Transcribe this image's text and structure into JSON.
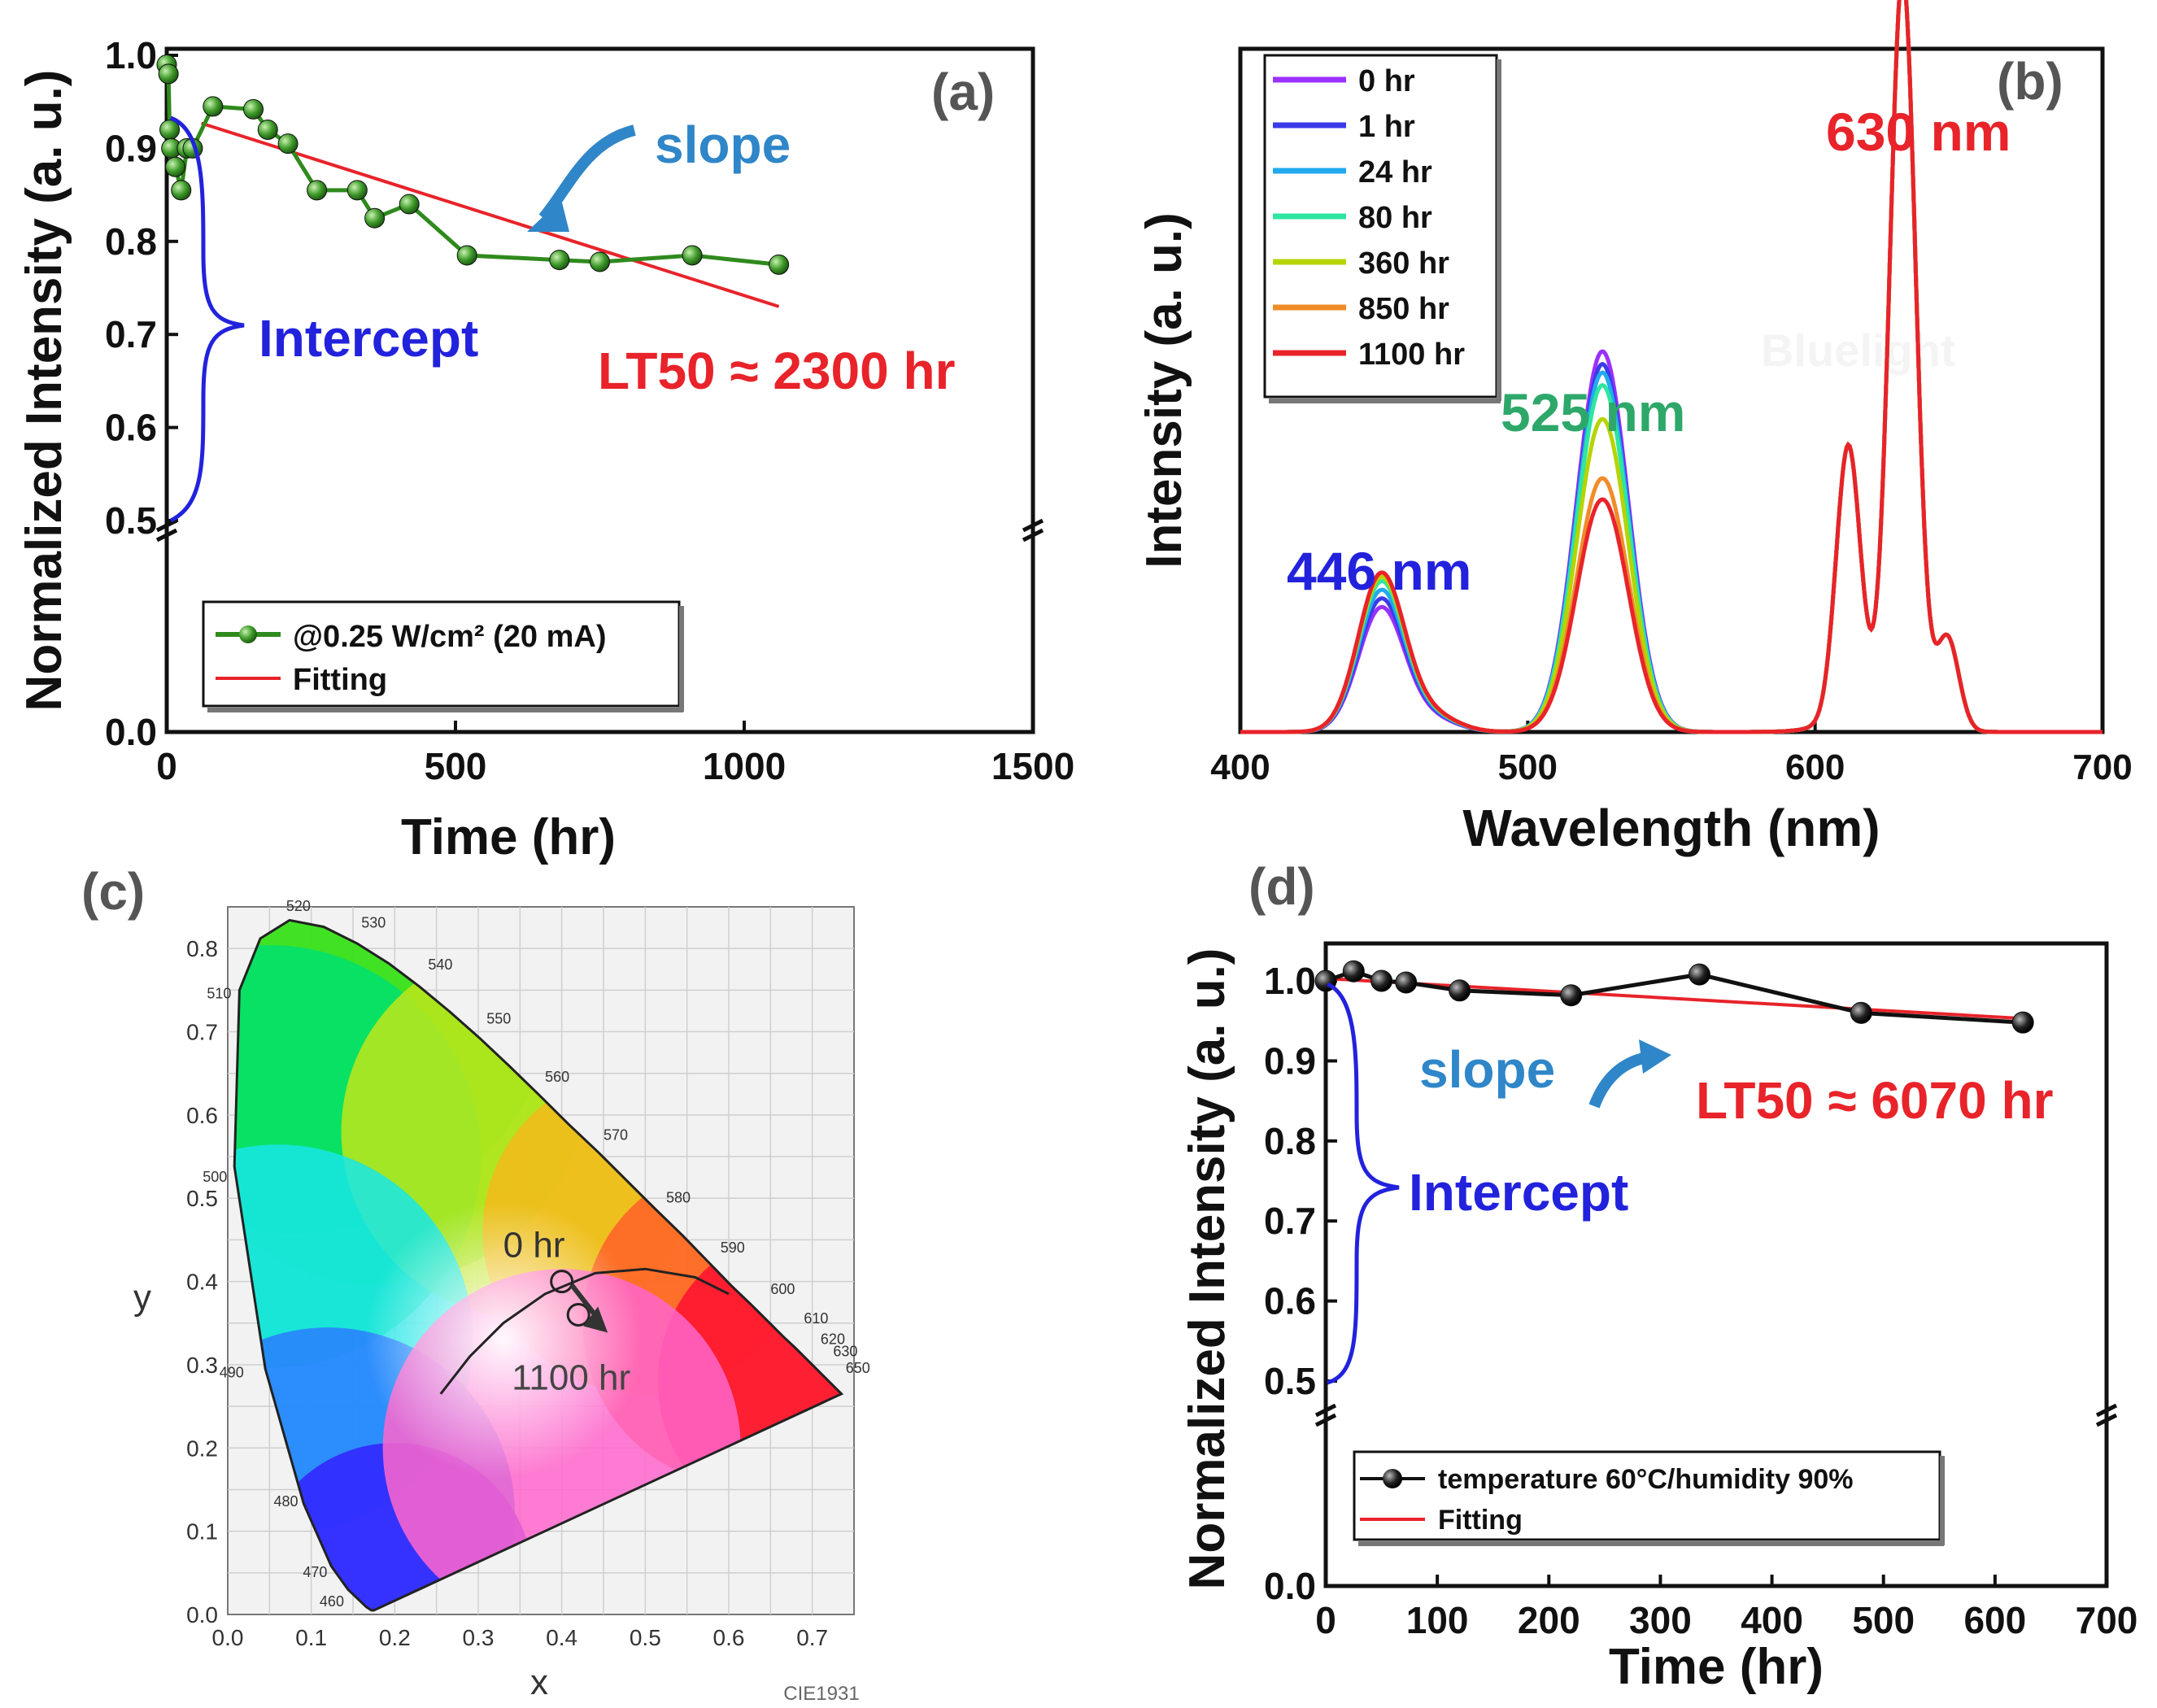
{
  "colors": {
    "green_series": "#2f8a1d",
    "black_series": "#111111",
    "fit_red": "#e8232a",
    "blue_text": "#2222dd",
    "slope_blue": "#2f86c8",
    "peak_green": "#2ea86a",
    "axis": "#111111",
    "cie_bg": "#f2f2f2"
  },
  "chart_data": [
    {
      "panel": "(a)",
      "type": "line",
      "xlabel": "Time (hr)",
      "ylabel": "Normalized Intensity (a. u.)",
      "xlim": [
        0,
        1500
      ],
      "ylim": [
        0,
        1.0
      ],
      "axis_break": [
        0.1,
        0.5
      ],
      "xticks": [
        "0",
        "500",
        "1000",
        "1500"
      ],
      "yticks": [
        "0.0",
        "0.5",
        "0.6",
        "0.7",
        "0.8",
        "0.9",
        "1.0"
      ],
      "series": [
        {
          "name": "@0.25 W/cm² (20 mA)",
          "x": [
            0,
            3,
            5,
            8,
            15,
            25,
            35,
            45,
            80,
            150,
            175,
            210,
            260,
            330,
            360,
            420,
            520,
            680,
            750,
            910,
            1060
          ],
          "y": [
            0.99,
            0.98,
            0.92,
            0.9,
            0.88,
            0.855,
            0.9,
            0.9,
            0.945,
            0.942,
            0.92,
            0.905,
            0.855,
            0.855,
            0.825,
            0.84,
            0.785,
            0.78,
            0.778,
            0.785,
            0.775
          ]
        },
        {
          "name": "Fitting",
          "x": [
            60,
            1060
          ],
          "y": [
            0.927,
            0.73
          ]
        }
      ],
      "annotations": {
        "slope": "slope",
        "intercept": "Intercept",
        "lt50": "LT50 ≈ 2300 hr"
      }
    },
    {
      "panel": "(b)",
      "type": "line",
      "xlabel": "Wavelength (nm)",
      "ylabel": "Intensity (a. u.)",
      "xlim": [
        400,
        700
      ],
      "xticks": [
        "400",
        "500",
        "600",
        "700"
      ],
      "series": [
        {
          "name": "0 hr",
          "color": "#9b30ff",
          "peak446": 0.29,
          "peak525": 0.9
        },
        {
          "name": "1 hr",
          "color": "#3b3be8",
          "peak446": 0.31,
          "peak525": 0.87
        },
        {
          "name": "24 hr",
          "color": "#22aaee",
          "peak446": 0.33,
          "peak525": 0.85
        },
        {
          "name": "80 hr",
          "color": "#2ee6a0",
          "peak446": 0.35,
          "peak525": 0.82
        },
        {
          "name": "360 hr",
          "color": "#b6d400",
          "peak446": 0.36,
          "peak525": 0.74
        },
        {
          "name": "850 hr",
          "color": "#f08c28",
          "peak446": 0.37,
          "peak525": 0.6
        },
        {
          "name": "1100 hr",
          "color": "#e8232a",
          "peak446": 0.37,
          "peak525": 0.55
        }
      ],
      "red_peaks": {
        "p611": 0.64,
        "p630": 1.76,
        "p646": 0.22
      },
      "annotations": {
        "p446": "446 nm",
        "p525": "525 nm",
        "p630": "630 nm",
        "watermark": "Bluelight"
      }
    },
    {
      "panel": "(c)",
      "type": "scatter",
      "xlabel": "x",
      "ylabel": "y",
      "xlim": [
        0,
        0.75
      ],
      "ylim": [
        0,
        0.85
      ],
      "xticks": [
        "0.0",
        "0.1",
        "0.2",
        "0.3",
        "0.4",
        "0.5",
        "0.6",
        "0.7"
      ],
      "yticks": [
        "0.0",
        "0.1",
        "0.2",
        "0.3",
        "0.4",
        "0.5",
        "0.6",
        "0.7",
        "0.8"
      ],
      "points": [
        {
          "label": "0 hr",
          "x": 0.4,
          "y": 0.4
        },
        {
          "label": "1100 hr",
          "x": 0.42,
          "y": 0.36
        }
      ],
      "locus_labels": [
        "520",
        "530",
        "540",
        "550",
        "560",
        "570",
        "580",
        "590",
        "600",
        "610",
        "620",
        "630",
        "650",
        "510",
        "500",
        "490",
        "480",
        "470",
        "460"
      ],
      "footer": "CIE1931"
    },
    {
      "panel": "(d)",
      "type": "line",
      "xlabel": "Time (hr)",
      "ylabel": "Normalized Intensity (a. u.)",
      "xlim": [
        0,
        700
      ],
      "ylim": [
        0,
        1.0
      ],
      "axis_break": [
        0.1,
        0.5
      ],
      "xticks": [
        "0",
        "100",
        "200",
        "300",
        "400",
        "500",
        "600",
        "700"
      ],
      "yticks": [
        "0.0",
        "0.5",
        "0.6",
        "0.7",
        "0.8",
        "0.9",
        "1.0"
      ],
      "series": [
        {
          "name": "temperature 60°C/humidity 90%",
          "x": [
            0,
            25,
            50,
            72,
            120,
            220,
            335,
            480,
            625
          ],
          "y": [
            1.0,
            1.012,
            1.0,
            0.998,
            0.988,
            0.982,
            1.008,
            0.96,
            0.948
          ]
        },
        {
          "name": "Fitting",
          "x": [
            0,
            625
          ],
          "y": [
            1.003,
            0.953
          ]
        }
      ],
      "annotations": {
        "slope": "slope",
        "intercept": "Intercept",
        "lt50": "LT50 ≈ 6070 hr"
      }
    }
  ]
}
